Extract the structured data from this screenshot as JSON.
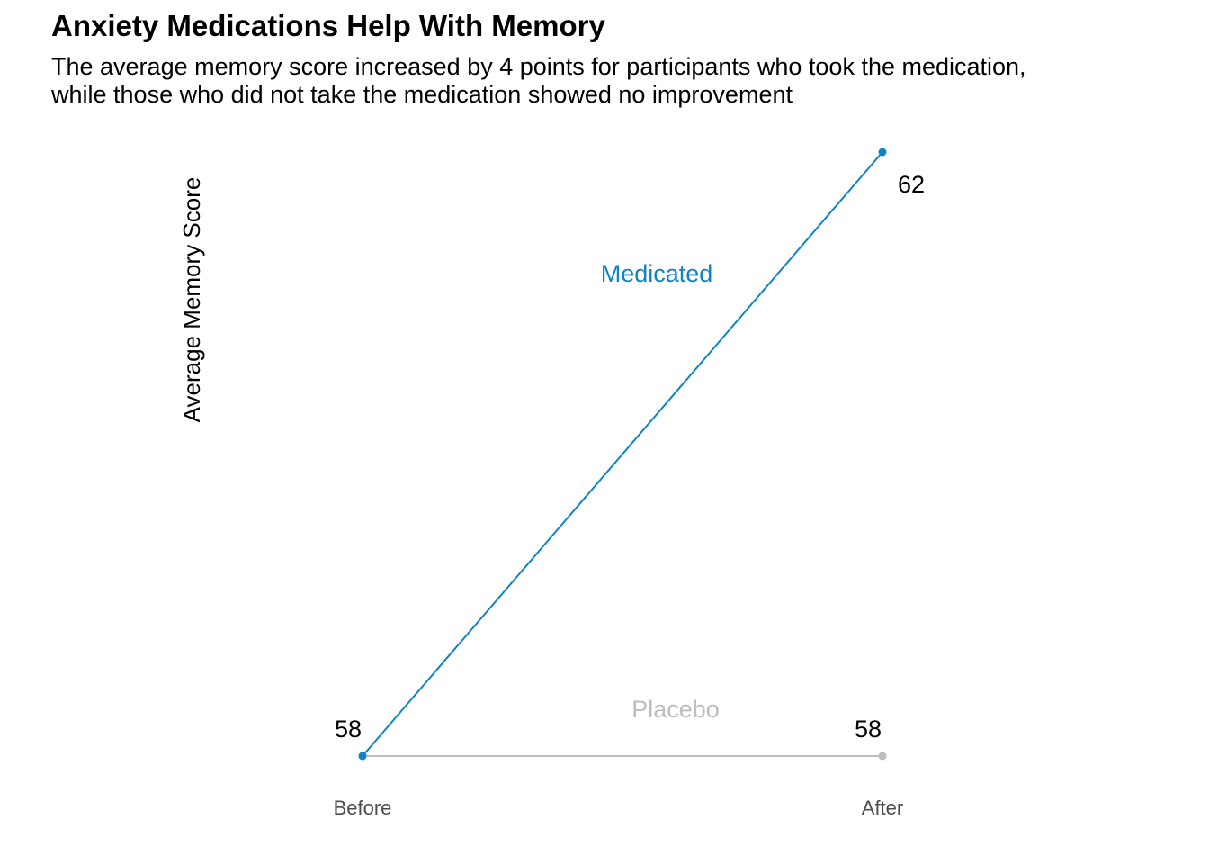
{
  "title": "Anxiety Medications Help With Memory",
  "subtitle_lines": [
    "The average memory score increased by 4 points for participants who took the medication,",
    "while those who did not take the medication showed no improvement"
  ],
  "chart_data": {
    "type": "line",
    "title": "Anxiety Medications Help With Memory",
    "xlabel": "",
    "ylabel": "Average Memory Score",
    "categories": [
      "Before",
      "After"
    ],
    "ylim": [
      58,
      62
    ],
    "grid": false,
    "legend": "direct labels",
    "series": [
      {
        "name": "Medicated",
        "values": [
          58,
          62
        ],
        "color": "#0e84c4",
        "value_labels": [
          "",
          "62"
        ]
      },
      {
        "name": "Placebo",
        "values": [
          58,
          58
        ],
        "color": "#bdbdbd",
        "value_labels": [
          "58",
          "58"
        ]
      }
    ]
  }
}
